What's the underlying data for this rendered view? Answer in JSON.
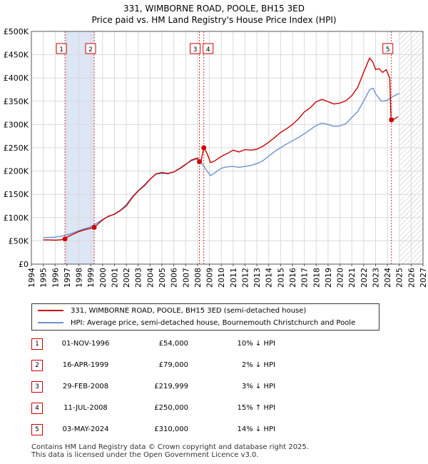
{
  "title_line1": "331, WIMBORNE ROAD, POOLE, BH15 3ED",
  "title_line2": "Price paid vs. HM Land Registry's House Price Index (HPI)",
  "colors": {
    "property": "#cc0000",
    "hpi": "#6a93cf",
    "band": "#dce6f5",
    "grid": "#d9d9d9",
    "hatch": "#bbbbbb",
    "marker_border": "#cc0000"
  },
  "legend": {
    "property_label": "331, WIMBORNE ROAD, POOLE, BH15 3ED (semi-detached house)",
    "hpi_label": "HPI: Average price, semi-detached house, Bournemouth Christchurch and Poole"
  },
  "transactions": [
    {
      "num": "1",
      "date": "01-NOV-1996",
      "price": "£54,000",
      "hpi": "10% ↓ HPI"
    },
    {
      "num": "2",
      "date": "16-APR-1999",
      "price": "£79,000",
      "hpi": "2% ↓ HPI"
    },
    {
      "num": "3",
      "date": "29-FEB-2008",
      "price": "£219,999",
      "hpi": "3% ↓ HPI"
    },
    {
      "num": "4",
      "date": "11-JUL-2008",
      "price": "£250,000",
      "hpi": "15% ↑ HPI"
    },
    {
      "num": "5",
      "date": "03-MAY-2024",
      "price": "£310,000",
      "hpi": "14% ↓ HPI"
    }
  ],
  "footer_line1": "Contains HM Land Registry data © Crown copyright and database right 2025.",
  "footer_line2": "This data is licensed under the Open Government Licence v3.0.",
  "chart_data": {
    "type": "line",
    "title": "331, WIMBORNE ROAD, POOLE, BH15 3ED — Price paid vs. HM Land Registry's House Price Index (HPI)",
    "xlim": [
      1994,
      2027
    ],
    "ylim": [
      0,
      500000
    ],
    "x_ticks": [
      "1994",
      "1995",
      "1996",
      "1997",
      "1998",
      "1999",
      "2000",
      "2001",
      "2002",
      "2003",
      "2004",
      "2005",
      "2006",
      "2007",
      "2008",
      "2009",
      "2010",
      "2011",
      "2012",
      "2013",
      "2014",
      "2015",
      "2016",
      "2017",
      "2018",
      "2019",
      "2020",
      "2021",
      "2022",
      "2023",
      "2024",
      "2025",
      "2026",
      "2027"
    ],
    "y_ticks": [
      {
        "value": 0,
        "label": "£0"
      },
      {
        "value": 50000,
        "label": "£50K"
      },
      {
        "value": 100000,
        "label": "£100K"
      },
      {
        "value": 150000,
        "label": "£150K"
      },
      {
        "value": 200000,
        "label": "£200K"
      },
      {
        "value": 250000,
        "label": "£250K"
      },
      {
        "value": 300000,
        "label": "£300K"
      },
      {
        "value": 350000,
        "label": "£350K"
      },
      {
        "value": 400000,
        "label": "£400K"
      },
      {
        "value": 450000,
        "label": "£450K"
      },
      {
        "value": 500000,
        "label": "£500K"
      }
    ],
    "shaded_period": [
      1996.83,
      1999.29
    ],
    "future_hatch_from": 2025.0,
    "sale_markers": [
      {
        "label": "1",
        "x": 1996.83,
        "y": 54000
      },
      {
        "label": "2",
        "x": 1999.29,
        "y": 79000
      },
      {
        "label": "3",
        "x": 2008.16,
        "y": 219999
      },
      {
        "label": "4",
        "x": 2008.53,
        "y": 250000
      },
      {
        "label": "5",
        "x": 2024.34,
        "y": 310000
      }
    ],
    "series": [
      {
        "name": "331, WIMBORNE ROAD, POOLE, BH15 3ED (semi-detached house)",
        "color": "#cc0000",
        "x": [
          1995.0,
          1995.5,
          1996.0,
          1996.5,
          1996.83,
          1997.0,
          1997.5,
          1998.0,
          1998.5,
          1999.0,
          1999.29,
          1999.6,
          2000.0,
          2000.5,
          2001.0,
          2001.5,
          2002.0,
          2002.5,
          2003.0,
          2003.5,
          2004.0,
          2004.5,
          2005.0,
          2005.5,
          2006.0,
          2006.5,
          2007.0,
          2007.5,
          2008.0,
          2008.16,
          2008.3,
          2008.53,
          2008.8,
          2009.1,
          2009.4,
          2009.8,
          2010.2,
          2010.6,
          2011.0,
          2011.5,
          2012.0,
          2012.5,
          2013.0,
          2013.5,
          2014.0,
          2014.5,
          2015.0,
          2015.5,
          2016.0,
          2016.5,
          2017.0,
          2017.5,
          2018.0,
          2018.5,
          2019.0,
          2019.5,
          2020.0,
          2020.5,
          2021.0,
          2021.5,
          2022.0,
          2022.5,
          2022.8,
          2023.0,
          2023.3,
          2023.6,
          2023.9,
          2024.2,
          2024.3,
          2024.34,
          2024.6,
          2024.9
        ],
        "y": [
          52000,
          52000,
          51500,
          52500,
          54000,
          58000,
          64000,
          70000,
          74000,
          77000,
          79000,
          86000,
          95000,
          103000,
          107000,
          115000,
          125000,
          143000,
          157000,
          168000,
          182000,
          194000,
          197000,
          195000,
          198000,
          205000,
          214000,
          224000,
          228000,
          219999,
          222000,
          250000,
          238000,
          218000,
          221000,
          228000,
          234000,
          239000,
          245000,
          241000,
          246000,
          245000,
          247000,
          253000,
          262000,
          272000,
          283000,
          291000,
          300000,
          312000,
          327000,
          336000,
          349000,
          354000,
          349000,
          344000,
          346000,
          351000,
          362000,
          380000,
          412000,
          443000,
          433000,
          418000,
          420000,
          412000,
          418000,
          400000,
          313000,
          310000,
          312000,
          317000
        ]
      },
      {
        "name": "HPI: Average price, semi-detached house, Bournemouth Christchurch and Poole",
        "color": "#6a93cf",
        "x": [
          1995.0,
          1995.5,
          1996.0,
          1996.5,
          1997.0,
          1997.5,
          1998.0,
          1998.5,
          1999.0,
          1999.5,
          2000.0,
          2000.5,
          2001.0,
          2001.5,
          2002.0,
          2002.5,
          2003.0,
          2003.5,
          2004.0,
          2004.5,
          2005.0,
          2005.5,
          2006.0,
          2006.5,
          2007.0,
          2007.5,
          2008.0,
          2008.5,
          2008.8,
          2009.1,
          2009.5,
          2010.0,
          2010.5,
          2011.0,
          2011.5,
          2012.0,
          2012.5,
          2013.0,
          2013.5,
          2014.0,
          2014.5,
          2015.0,
          2015.5,
          2016.0,
          2016.5,
          2017.0,
          2017.5,
          2018.0,
          2018.5,
          2019.0,
          2019.5,
          2020.0,
          2020.5,
          2021.0,
          2021.5,
          2022.0,
          2022.5,
          2022.8,
          2023.0,
          2023.5,
          2024.0,
          2024.3,
          2024.6,
          2025.0
        ],
        "y": [
          57000,
          57500,
          58000,
          60000,
          63000,
          67000,
          72000,
          76000,
          80000,
          88000,
          96000,
          102000,
          108000,
          116000,
          128000,
          145000,
          158000,
          170000,
          183000,
          193000,
          195000,
          194000,
          198000,
          206000,
          215000,
          222000,
          226000,
          212000,
          200000,
          190000,
          197000,
          206000,
          209000,
          210000,
          208000,
          210000,
          212000,
          216000,
          222000,
          232000,
          242000,
          250000,
          258000,
          265000,
          272000,
          280000,
          289000,
          298000,
          303000,
          300000,
          296000,
          297000,
          302000,
          315000,
          328000,
          350000,
          375000,
          378000,
          366000,
          350000,
          352000,
          358000,
          362000,
          367000
        ]
      }
    ]
  }
}
